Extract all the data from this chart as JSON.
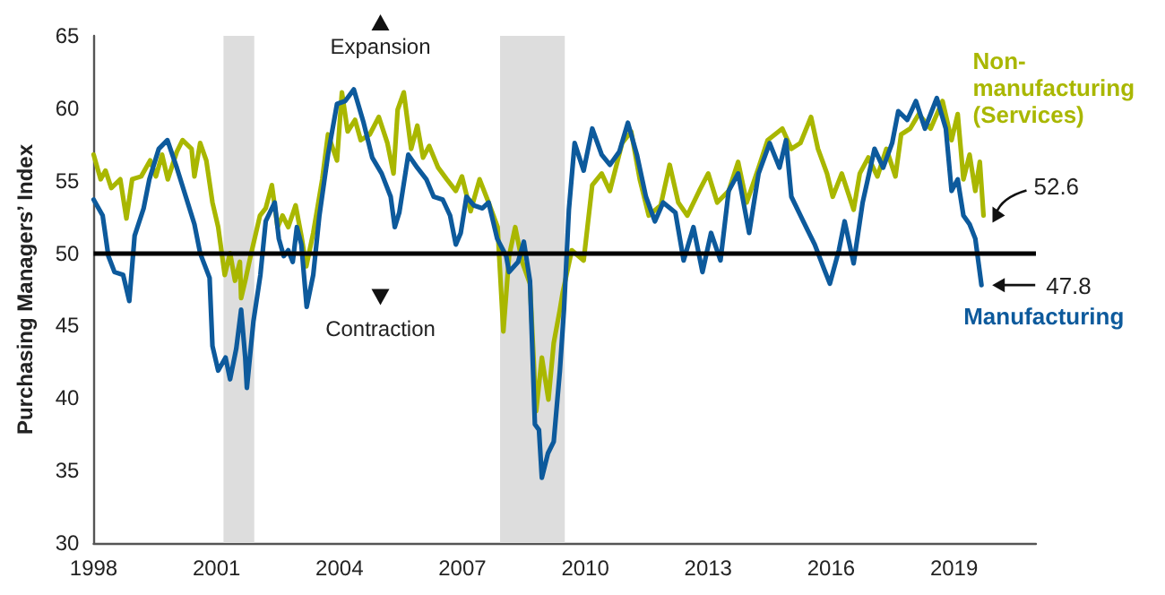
{
  "chart_data": {
    "type": "line",
    "ylabel": "Purchasing Managers’ Index",
    "xlim": [
      1998,
      2021
    ],
    "xticks": [
      1998,
      2001,
      2004,
      2007,
      2010,
      2013,
      2016,
      2019
    ],
    "ylim": [
      30,
      65
    ],
    "yticks": [
      30,
      35,
      40,
      45,
      50,
      55,
      60,
      65
    ],
    "grid": false,
    "legend": false,
    "marker": "none",
    "line_style": "solid",
    "annotations": [
      "Expansion",
      "Contraction",
      {
        "text": "52.6",
        "x": 2019.72,
        "y": 52.6
      },
      {
        "text": "47.8",
        "x": 2019.67,
        "y": 47.8
      }
    ],
    "ref_lines": [
      {
        "axis": "y",
        "value": 50,
        "label": null,
        "color": "#000000"
      }
    ],
    "bands": [
      {
        "axis": "x",
        "from": 2001.17,
        "to": 2001.92,
        "label": null,
        "color": "#dddddd"
      },
      {
        "axis": "x",
        "from": 2007.92,
        "to": 2009.5,
        "label": null,
        "color": "#dddddd"
      }
    ],
    "series": [
      {
        "name": "Non-manufacturing (Services)",
        "color": "#a9b700",
        "x": [
          1998.0,
          1998.17,
          1998.29,
          1998.43,
          1998.65,
          1998.8,
          1998.94,
          1999.16,
          1999.38,
          1999.52,
          1999.67,
          1999.81,
          2000.03,
          2000.17,
          2000.39,
          2000.46,
          2000.6,
          2000.75,
          2000.9,
          2001.04,
          2001.2,
          2001.33,
          2001.45,
          2001.57,
          2001.6,
          2001.7,
          2001.83,
          2002.06,
          2002.2,
          2002.35,
          2002.49,
          2002.61,
          2002.75,
          2002.93,
          2003.07,
          2003.19,
          2003.36,
          2003.58,
          2003.72,
          2003.94,
          2004.06,
          2004.2,
          2004.38,
          2004.52,
          2004.74,
          2004.96,
          2005.17,
          2005.32,
          2005.42,
          2005.57,
          2005.75,
          2005.9,
          2006.04,
          2006.19,
          2006.41,
          2006.62,
          2006.84,
          2006.99,
          2007.2,
          2007.42,
          2007.64,
          2007.86,
          2008.0,
          2008.14,
          2008.29,
          2008.46,
          2008.65,
          2008.8,
          2008.94,
          2009.1,
          2009.23,
          2009.38,
          2009.45,
          2009.67,
          2009.96,
          2010.17,
          2010.4,
          2010.6,
          2010.9,
          2011.12,
          2011.33,
          2011.55,
          2011.84,
          2012.06,
          2012.27,
          2012.49,
          2012.78,
          2013.0,
          2013.22,
          2013.5,
          2013.73,
          2013.94,
          2014.23,
          2014.45,
          2014.81,
          2015.03,
          2015.25,
          2015.51,
          2015.68,
          2015.9,
          2016.04,
          2016.26,
          2016.55,
          2016.7,
          2016.91,
          2017.13,
          2017.35,
          2017.57,
          2017.71,
          2017.93,
          2018.14,
          2018.43,
          2018.72,
          2018.94,
          2019.09,
          2019.23,
          2019.38,
          2019.52,
          2019.63,
          2019.72
        ],
        "values": [
          56.8,
          55.1,
          55.7,
          54.5,
          55.1,
          52.4,
          55.1,
          55.3,
          56.4,
          55.3,
          56.8,
          55.1,
          57.0,
          57.8,
          57.2,
          55.3,
          57.6,
          56.4,
          53.5,
          51.8,
          48.5,
          50.0,
          48.1,
          49.4,
          46.9,
          48.1,
          49.8,
          52.6,
          53.1,
          54.7,
          51.8,
          52.6,
          51.8,
          53.3,
          51.2,
          49.1,
          51.4,
          55.1,
          58.2,
          56.4,
          61.1,
          58.4,
          59.2,
          57.8,
          58.2,
          59.4,
          57.6,
          55.5,
          59.9,
          61.1,
          57.2,
          58.8,
          56.6,
          57.4,
          55.9,
          55.1,
          54.3,
          55.3,
          52.9,
          55.1,
          53.5,
          51.8,
          44.6,
          49.8,
          51.8,
          49.4,
          47.9,
          39.1,
          42.8,
          39.9,
          43.8,
          46.1,
          47.3,
          50.2,
          49.5,
          54.7,
          55.5,
          54.3,
          57.6,
          58.4,
          55.1,
          52.6,
          53.3,
          56.1,
          53.5,
          52.6,
          54.3,
          55.5,
          53.5,
          54.3,
          56.3,
          53.5,
          55.9,
          57.8,
          58.6,
          57.2,
          57.6,
          59.4,
          57.2,
          55.5,
          53.9,
          55.5,
          53.0,
          55.5,
          56.6,
          55.3,
          57.2,
          55.3,
          58.2,
          58.6,
          59.6,
          58.6,
          60.5,
          57.8,
          59.6,
          55.1,
          56.8,
          54.3,
          56.3,
          52.6
        ]
      },
      {
        "name": "Manufacturing",
        "color": "#0d5a9c",
        "x": [
          1998.0,
          1998.22,
          1998.36,
          1998.51,
          1998.72,
          1998.87,
          1999.0,
          1999.22,
          1999.36,
          1999.59,
          1999.8,
          2000.03,
          2000.25,
          2000.46,
          2000.6,
          2000.83,
          2000.9,
          2001.04,
          2001.22,
          2001.33,
          2001.48,
          2001.6,
          2001.7,
          2001.74,
          2001.9,
          2002.07,
          2002.2,
          2002.42,
          2002.52,
          2002.64,
          2002.75,
          2002.86,
          2002.96,
          2003.07,
          2003.2,
          2003.36,
          2003.51,
          2003.72,
          2003.94,
          2004.14,
          2004.35,
          2004.59,
          2004.8,
          2005.03,
          2005.25,
          2005.35,
          2005.46,
          2005.68,
          2005.9,
          2006.12,
          2006.3,
          2006.52,
          2006.7,
          2006.84,
          2006.96,
          2007.1,
          2007.28,
          2007.49,
          2007.64,
          2007.85,
          2008.07,
          2008.14,
          2008.36,
          2008.5,
          2008.65,
          2008.77,
          2008.87,
          2008.94,
          2009.09,
          2009.23,
          2009.38,
          2009.48,
          2009.6,
          2009.74,
          2009.96,
          2010.17,
          2010.4,
          2010.6,
          2010.83,
          2011.04,
          2011.26,
          2011.48,
          2011.7,
          2011.9,
          2012.2,
          2012.4,
          2012.64,
          2012.86,
          2013.07,
          2013.3,
          2013.5,
          2013.73,
          2014.0,
          2014.23,
          2014.5,
          2014.74,
          2014.9,
          2015.03,
          2015.32,
          2015.6,
          2015.83,
          2015.97,
          2016.19,
          2016.33,
          2016.55,
          2016.77,
          2017.06,
          2017.27,
          2017.49,
          2017.64,
          2017.86,
          2018.07,
          2018.29,
          2018.58,
          2018.8,
          2018.94,
          2019.09,
          2019.23,
          2019.38,
          2019.52,
          2019.67
        ],
        "values": [
          53.7,
          52.6,
          49.8,
          48.7,
          48.5,
          46.7,
          51.2,
          53.1,
          55.1,
          57.2,
          57.8,
          55.9,
          53.9,
          52.0,
          50.0,
          48.3,
          43.6,
          41.9,
          42.8,
          41.3,
          43.4,
          46.1,
          42.8,
          40.7,
          45.3,
          48.5,
          52.2,
          53.5,
          51.0,
          49.8,
          50.2,
          49.4,
          51.8,
          50.6,
          46.3,
          48.5,
          52.6,
          56.8,
          60.3,
          60.5,
          61.3,
          59.0,
          56.6,
          55.5,
          53.9,
          51.8,
          52.8,
          56.8,
          55.9,
          55.1,
          53.9,
          53.7,
          52.6,
          50.6,
          51.4,
          53.9,
          53.3,
          53.1,
          53.5,
          51.0,
          49.8,
          48.7,
          49.4,
          50.8,
          48.1,
          38.2,
          37.8,
          34.5,
          36.2,
          37.0,
          41.9,
          46.1,
          53.0,
          57.6,
          55.7,
          58.6,
          56.8,
          56.1,
          57.0,
          59.0,
          56.8,
          53.9,
          52.2,
          53.5,
          52.8,
          49.5,
          51.8,
          48.7,
          51.4,
          49.5,
          54.3,
          55.5,
          51.4,
          55.5,
          57.6,
          55.9,
          57.8,
          53.9,
          52.2,
          50.6,
          48.9,
          47.9,
          50.2,
          52.2,
          49.3,
          53.5,
          57.2,
          55.9,
          57.6,
          59.8,
          59.2,
          60.5,
          58.6,
          60.7,
          58.6,
          54.3,
          55.1,
          52.6,
          52.0,
          51.0,
          47.8
        ]
      }
    ]
  }
}
